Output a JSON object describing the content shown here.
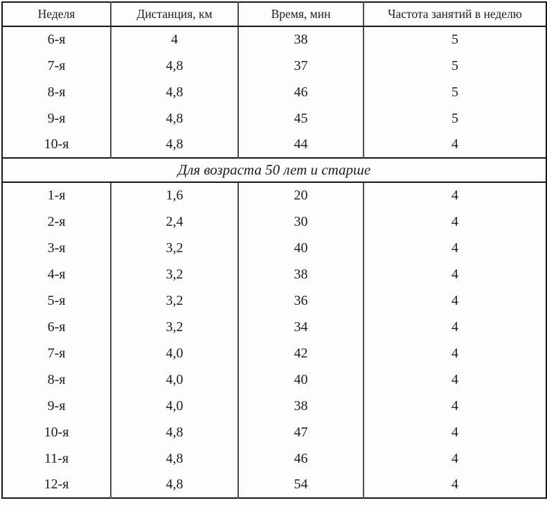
{
  "table": {
    "headers": [
      "Неделя",
      "Дистанция, км",
      "Время, мин",
      "Частота занятий в неделю"
    ],
    "section1_rows": [
      [
        "6-я",
        "4",
        "38",
        "5"
      ],
      [
        "7-я",
        "4,8",
        "37",
        "5"
      ],
      [
        "8-я",
        "4,8",
        "46",
        "5"
      ],
      [
        "9-я",
        "4,8",
        "45",
        "5"
      ],
      [
        "10-я",
        "4,8",
        "44",
        "4"
      ]
    ],
    "section_title": "Для возраста 50 лет и старше",
    "section2_rows": [
      [
        "1-я",
        "1,6",
        "20",
        "4"
      ],
      [
        "2-я",
        "2,4",
        "30",
        "4"
      ],
      [
        "3-я",
        "3,2",
        "40",
        "4"
      ],
      [
        "4-я",
        "3,2",
        "38",
        "4"
      ],
      [
        "5-я",
        "3,2",
        "36",
        "4"
      ],
      [
        "6-я",
        "3,2",
        "34",
        "4"
      ],
      [
        "7-я",
        "4,0",
        "42",
        "4"
      ],
      [
        "8-я",
        "4,0",
        "40",
        "4"
      ],
      [
        "9-я",
        "4,0",
        "38",
        "4"
      ],
      [
        "10-я",
        "4,8",
        "47",
        "4"
      ],
      [
        "11-я",
        "4,8",
        "46",
        "4"
      ],
      [
        "12-я",
        "4,8",
        "54",
        "4"
      ]
    ]
  }
}
